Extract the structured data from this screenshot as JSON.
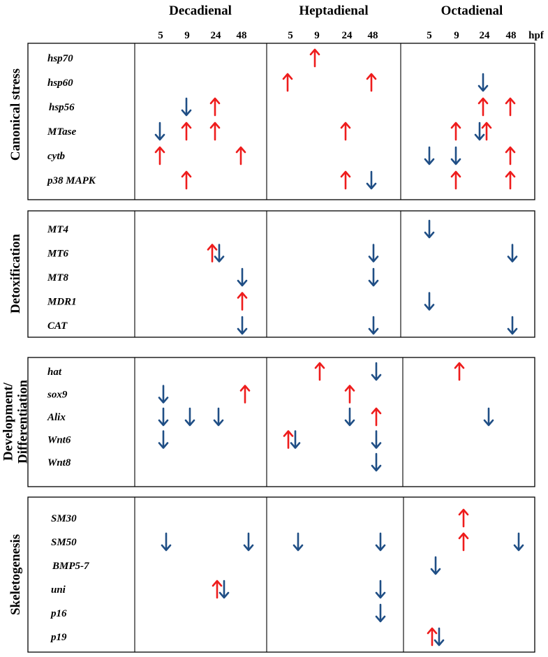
{
  "aldehydes": [
    "Decadienal",
    "Heptadienal",
    "Octadienal"
  ],
  "timepoints": [
    "5",
    "9",
    "24",
    "48"
  ],
  "time_unit": "hpf",
  "colors": {
    "up": "#ee1c1c",
    "down": "#1f4e85",
    "frame": "#000000"
  },
  "panels": [
    {
      "category": [
        "Canonical stress"
      ],
      "genes": [
        {
          "name": "hsp70",
          "arrows": [
            {
              "a": 1,
              "t": "9",
              "d": "up"
            }
          ]
        },
        {
          "name": "hsp60",
          "arrows": [
            {
              "a": 1,
              "t": "5",
              "d": "up"
            },
            {
              "a": 1,
              "t": "48",
              "d": "up"
            },
            {
              "a": 2,
              "t": "24",
              "d": "down"
            }
          ]
        },
        {
          "name": "hsp56",
          "arrows": [
            {
              "a": 0,
              "t": "9",
              "d": "down"
            },
            {
              "a": 0,
              "t": "24",
              "d": "up"
            },
            {
              "a": 2,
              "t": "24",
              "d": "up"
            },
            {
              "a": 2,
              "t": "48",
              "d": "up"
            }
          ]
        },
        {
          "name": "MTase",
          "arrows": [
            {
              "a": 0,
              "t": "5",
              "d": "down"
            },
            {
              "a": 0,
              "t": "9",
              "d": "up"
            },
            {
              "a": 0,
              "t": "24",
              "d": "up"
            },
            {
              "a": 1,
              "t": "24",
              "d": "up"
            },
            {
              "a": 2,
              "t": "9",
              "d": "up"
            },
            {
              "a": 2,
              "t": "24",
              "d": "down"
            },
            {
              "a": 2,
              "t": "24",
              "d": "up"
            }
          ]
        },
        {
          "name": "cytb",
          "arrows": [
            {
              "a": 0,
              "t": "5",
              "d": "up"
            },
            {
              "a": 0,
              "t": "48",
              "d": "up"
            },
            {
              "a": 2,
              "t": "5",
              "d": "down"
            },
            {
              "a": 2,
              "t": "9",
              "d": "down"
            },
            {
              "a": 2,
              "t": "48",
              "d": "up"
            }
          ]
        },
        {
          "name": "p38 MAPK",
          "arrows": [
            {
              "a": 0,
              "t": "9",
              "d": "up"
            },
            {
              "a": 1,
              "t": "24",
              "d": "up"
            },
            {
              "a": 1,
              "t": "48",
              "d": "down"
            },
            {
              "a": 2,
              "t": "9",
              "d": "up"
            },
            {
              "a": 2,
              "t": "48",
              "d": "up"
            }
          ]
        }
      ]
    },
    {
      "category": [
        "Detoxification"
      ],
      "genes": [
        {
          "name": "MT4",
          "arrows": [
            {
              "a": 2,
              "t": "5",
              "d": "down"
            }
          ]
        },
        {
          "name": "MT6",
          "arrows": [
            {
              "a": 0,
              "t": "24",
              "d": "up"
            },
            {
              "a": 0,
              "t": "24",
              "d": "down"
            },
            {
              "a": 1,
              "t": "48",
              "d": "down"
            },
            {
              "a": 2,
              "t": "48",
              "d": "down"
            }
          ]
        },
        {
          "name": "MT8",
          "arrows": [
            {
              "a": 0,
              "t": "48",
              "d": "down"
            },
            {
              "a": 1,
              "t": "48",
              "d": "down"
            }
          ]
        },
        {
          "name": "MDR1",
          "arrows": [
            {
              "a": 0,
              "t": "48",
              "d": "up"
            },
            {
              "a": 2,
              "t": "5",
              "d": "down"
            }
          ]
        },
        {
          "name": "CAT",
          "arrows": [
            {
              "a": 0,
              "t": "48",
              "d": "down"
            },
            {
              "a": 1,
              "t": "48",
              "d": "down"
            },
            {
              "a": 2,
              "t": "48",
              "d": "down"
            }
          ]
        }
      ]
    },
    {
      "category": [
        "Development/",
        "Differentiation"
      ],
      "genes": [
        {
          "name": "hat",
          "arrows": [
            {
              "a": 1,
              "t": "9",
              "d": "up"
            },
            {
              "a": 1,
              "t": "48",
              "d": "down"
            },
            {
              "a": 2,
              "t": "9",
              "d": "up"
            }
          ]
        },
        {
          "name": "sox9",
          "arrows": [
            {
              "a": 0,
              "t": "5",
              "d": "down"
            },
            {
              "a": 0,
              "t": "48",
              "d": "up"
            },
            {
              "a": 1,
              "t": "24",
              "d": "up"
            }
          ]
        },
        {
          "name": "Alix",
          "arrows": [
            {
              "a": 0,
              "t": "5",
              "d": "down"
            },
            {
              "a": 0,
              "t": "9",
              "d": "down"
            },
            {
              "a": 0,
              "t": "24",
              "d": "down"
            },
            {
              "a": 1,
              "t": "24",
              "d": "down"
            },
            {
              "a": 1,
              "t": "48",
              "d": "up"
            },
            {
              "a": 2,
              "t": "24",
              "d": "down"
            }
          ]
        },
        {
          "name": "Wnt6",
          "arrows": [
            {
              "a": 0,
              "t": "5",
              "d": "down"
            },
            {
              "a": 1,
              "t": "5",
              "d": "up"
            },
            {
              "a": 1,
              "t": "5",
              "d": "down"
            },
            {
              "a": 1,
              "t": "48",
              "d": "down"
            }
          ]
        },
        {
          "name": "Wnt8",
          "arrows": [
            {
              "a": 1,
              "t": "48",
              "d": "down"
            }
          ]
        }
      ]
    },
    {
      "category": [
        "Skeletogenesis"
      ],
      "genes": [
        {
          "name": "SM30",
          "arrows": [
            {
              "a": 2,
              "t": "9",
              "d": "up"
            }
          ]
        },
        {
          "name": "SM50",
          "arrows": [
            {
              "a": 0,
              "t": "5",
              "d": "down"
            },
            {
              "a": 0,
              "t": "48",
              "d": "down"
            },
            {
              "a": 1,
              "t": "5",
              "d": "down"
            },
            {
              "a": 1,
              "t": "48",
              "d": "down"
            },
            {
              "a": 2,
              "t": "9",
              "d": "up"
            },
            {
              "a": 2,
              "t": "48",
              "d": "down"
            }
          ]
        },
        {
          "name": "BMP5-7",
          "arrows": [
            {
              "a": 2,
              "t": "5",
              "d": "down"
            }
          ]
        },
        {
          "name": "uni",
          "arrows": [
            {
              "a": 0,
              "t": "24",
              "d": "up"
            },
            {
              "a": 0,
              "t": "24",
              "d": "down"
            },
            {
              "a": 1,
              "t": "48",
              "d": "down"
            }
          ]
        },
        {
          "name": "p16",
          "arrows": [
            {
              "a": 1,
              "t": "48",
              "d": "down"
            }
          ]
        },
        {
          "name": "p19",
          "arrows": [
            {
              "a": 2,
              "t": "5",
              "d": "up"
            },
            {
              "a": 2,
              "t": "5",
              "d": "down"
            }
          ]
        }
      ]
    }
  ]
}
